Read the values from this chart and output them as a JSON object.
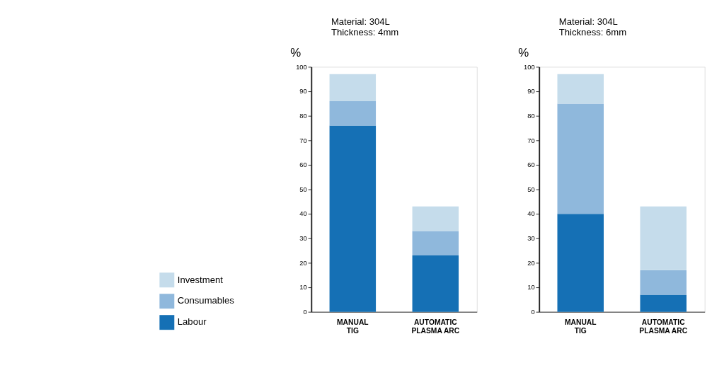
{
  "chart_data": [
    {
      "type": "bar",
      "title": "Material: 304L",
      "subtitle": "Thickness: 4mm",
      "ylabel": "%",
      "stacked": true,
      "categories": [
        "MANUAL TIG",
        "AUTOMATIC PLASMA ARC"
      ],
      "ylim": [
        0,
        100
      ],
      "yticks": [
        0,
        10,
        20,
        30,
        40,
        50,
        60,
        70,
        80,
        90,
        100
      ],
      "grid": false,
      "legend": "bottom left",
      "series": [
        {
          "name": "Labour",
          "color": "#1570b5",
          "values": [
            76,
            23
          ]
        },
        {
          "name": "Consumables",
          "color": "#8fb8dc",
          "values": [
            10,
            10
          ]
        },
        {
          "name": "Investment",
          "color": "#c5dceb",
          "values": [
            11,
            10
          ]
        }
      ]
    },
    {
      "type": "bar",
      "title": "Material: 304L",
      "subtitle": "Thickness: 6mm",
      "ylabel": "%",
      "stacked": true,
      "categories": [
        "MANUAL TIG",
        "AUTOMATIC PLASMA ARC"
      ],
      "ylim": [
        0,
        100
      ],
      "yticks": [
        0,
        10,
        20,
        30,
        40,
        50,
        60,
        70,
        80,
        90,
        100
      ],
      "grid": false,
      "legend": false,
      "series": [
        {
          "name": "Labour",
          "color": "#1570b5",
          "values": [
            40,
            7
          ]
        },
        {
          "name": "Consumables",
          "color": "#8fb8dc",
          "values": [
            45,
            10
          ]
        },
        {
          "name": "Investment",
          "color": "#c5dceb",
          "values": [
            12,
            26
          ]
        }
      ]
    }
  ]
}
